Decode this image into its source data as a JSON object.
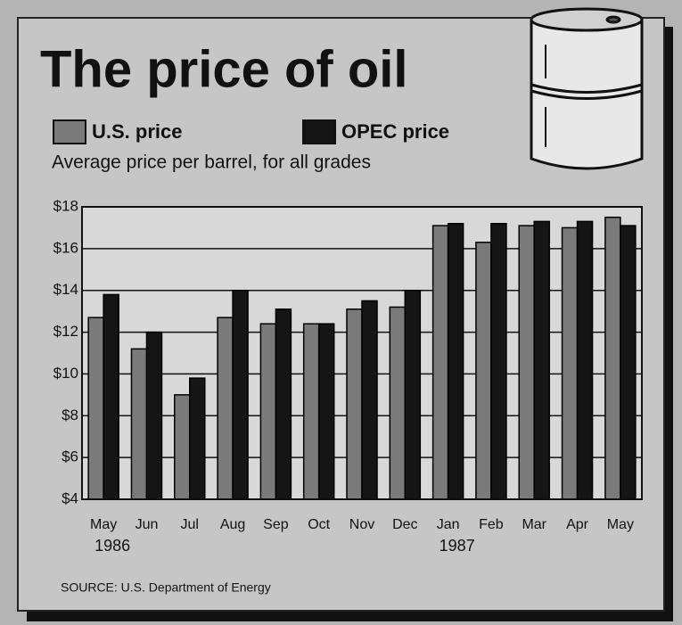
{
  "chart_data": {
    "type": "bar",
    "title": "The price of oil",
    "subtitle": "Average price per barrel, for all grades",
    "source": "SOURCE: U.S. Department of Energy",
    "categories": [
      "May",
      "Jun",
      "Jul",
      "Aug",
      "Sep",
      "Oct",
      "Nov",
      "Dec",
      "Jan",
      "Feb",
      "Mar",
      "Apr",
      "May"
    ],
    "category_years": [
      "1986",
      null,
      null,
      null,
      null,
      null,
      null,
      null,
      "1987",
      null,
      null,
      null,
      null
    ],
    "series": [
      {
        "name": "U.S. price",
        "color": "#7a7a7a",
        "values": [
          12.7,
          11.2,
          9.0,
          12.7,
          12.4,
          12.4,
          13.1,
          13.2,
          17.1,
          16.3,
          17.1,
          17.0,
          17.5
        ]
      },
      {
        "name": "OPEC price",
        "color": "#151515",
        "values": [
          13.8,
          12.0,
          9.8,
          14.0,
          13.1,
          12.4,
          13.5,
          14.0,
          17.2,
          17.2,
          17.3,
          17.3,
          17.1
        ]
      }
    ],
    "ylim": [
      4,
      18
    ],
    "yticks": [
      {
        "value": 4,
        "label": "$4"
      },
      {
        "value": 6,
        "label": "$6"
      },
      {
        "value": 8,
        "label": "$8"
      },
      {
        "value": 10,
        "label": "$10"
      },
      {
        "value": 12,
        "label": "$12"
      },
      {
        "value": 14,
        "label": "$14"
      },
      {
        "value": 16,
        "label": "$16"
      },
      {
        "value": 18,
        "label": "$18"
      }
    ],
    "grid": true
  }
}
